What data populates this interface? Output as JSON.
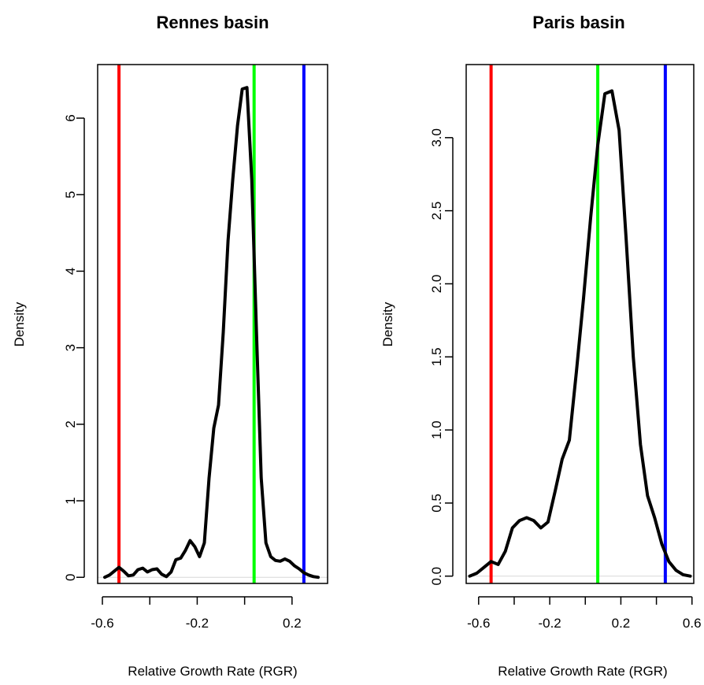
{
  "chart_data": [
    {
      "type": "line",
      "title": "Rennes basin",
      "xlabel": "Relative Growth Rate (RGR)",
      "ylabel": "Density",
      "xlim": [
        -0.62,
        0.35
      ],
      "ylim": [
        -0.08,
        6.7
      ],
      "x_ticks": [
        -0.6,
        -0.4,
        -0.2,
        0.0,
        0.2
      ],
      "x_tick_labels": [
        "-0.6",
        "",
        "-0.2",
        "",
        "0.2"
      ],
      "y_ticks": [
        0,
        1,
        2,
        3,
        4,
        5,
        6
      ],
      "y_tick_labels": [
        "0",
        "1",
        "2",
        "3",
        "4",
        "5",
        "6"
      ],
      "grid": false,
      "vlines": [
        {
          "x": -0.53,
          "color": "#ff0000"
        },
        {
          "x": 0.04,
          "color": "#00ff00"
        },
        {
          "x": 0.25,
          "color": "#0000ff"
        }
      ],
      "baseline_color": "#d8d8d8",
      "series": [
        {
          "color": "#000000",
          "x": [
            -0.59,
            -0.57,
            -0.55,
            -0.53,
            -0.51,
            -0.49,
            -0.47,
            -0.45,
            -0.43,
            -0.41,
            -0.39,
            -0.37,
            -0.35,
            -0.33,
            -0.31,
            -0.29,
            -0.27,
            -0.25,
            -0.23,
            -0.21,
            -0.19,
            -0.17,
            -0.15,
            -0.13,
            -0.11,
            -0.09,
            -0.07,
            -0.05,
            -0.03,
            -0.01,
            0.01,
            0.03,
            0.05,
            0.07,
            0.09,
            0.11,
            0.13,
            0.15,
            0.17,
            0.19,
            0.21,
            0.23,
            0.25,
            0.27,
            0.29,
            0.31
          ],
          "y": [
            0.0,
            0.03,
            0.08,
            0.13,
            0.08,
            0.02,
            0.03,
            0.1,
            0.12,
            0.07,
            0.1,
            0.11,
            0.04,
            0.01,
            0.07,
            0.23,
            0.25,
            0.35,
            0.48,
            0.4,
            0.27,
            0.45,
            1.3,
            1.95,
            2.25,
            3.2,
            4.4,
            5.2,
            5.9,
            6.38,
            6.4,
            5.2,
            3.2,
            1.3,
            0.45,
            0.27,
            0.22,
            0.21,
            0.24,
            0.21,
            0.15,
            0.11,
            0.06,
            0.03,
            0.01,
            0.0
          ]
        }
      ]
    },
    {
      "type": "line",
      "title": "Paris basin",
      "xlabel": "Relative Growth Rate (RGR)",
      "ylabel": "Density",
      "xlim": [
        -0.67,
        0.61
      ],
      "ylim": [
        -0.05,
        3.5
      ],
      "x_ticks": [
        -0.6,
        -0.4,
        -0.2,
        0.0,
        0.2,
        0.4,
        0.6
      ],
      "x_tick_labels": [
        "-0.6",
        "",
        "-0.2",
        "",
        "0.2",
        "",
        "0.6"
      ],
      "y_ticks": [
        0.0,
        0.5,
        1.0,
        1.5,
        2.0,
        2.5,
        3.0
      ],
      "y_tick_labels": [
        "0.0",
        "0.5",
        "1.0",
        "1.5",
        "2.0",
        "2.5",
        "3.0"
      ],
      "grid": false,
      "vlines": [
        {
          "x": -0.53,
          "color": "#ff0000"
        },
        {
          "x": 0.07,
          "color": "#00ff00"
        },
        {
          "x": 0.45,
          "color": "#0000ff"
        }
      ],
      "baseline_color": "#d8d8d8",
      "series": [
        {
          "color": "#000000",
          "x": [
            -0.65,
            -0.61,
            -0.57,
            -0.53,
            -0.49,
            -0.45,
            -0.41,
            -0.37,
            -0.33,
            -0.29,
            -0.25,
            -0.21,
            -0.17,
            -0.13,
            -0.09,
            -0.05,
            -0.01,
            0.03,
            0.07,
            0.11,
            0.15,
            0.19,
            0.23,
            0.27,
            0.31,
            0.35,
            0.39,
            0.43,
            0.47,
            0.51,
            0.55,
            0.59
          ],
          "y": [
            0.0,
            0.02,
            0.06,
            0.1,
            0.08,
            0.17,
            0.33,
            0.38,
            0.4,
            0.38,
            0.33,
            0.37,
            0.58,
            0.8,
            0.93,
            1.4,
            1.9,
            2.45,
            2.95,
            3.3,
            3.32,
            3.05,
            2.3,
            1.5,
            0.9,
            0.55,
            0.4,
            0.22,
            0.1,
            0.04,
            0.01,
            0.0
          ]
        }
      ]
    }
  ]
}
